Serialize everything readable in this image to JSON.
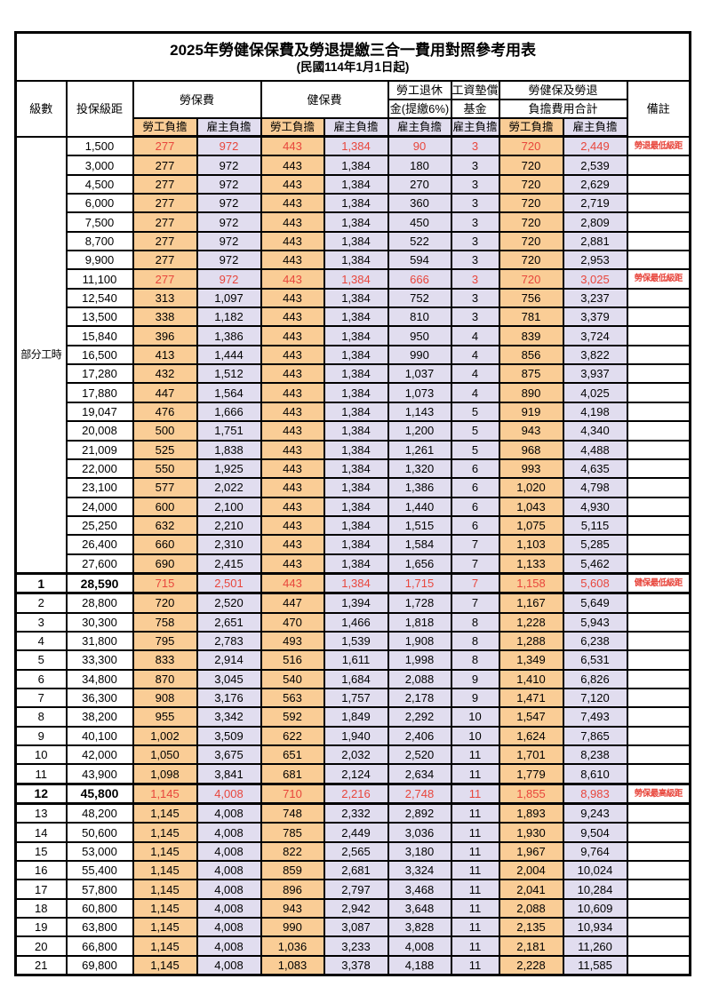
{
  "title": "2025年勞健保保費及勞退提繳三合一費用對照參考用表",
  "subtitle": "(民國114年1月1日起)",
  "header": {
    "level": "級數",
    "salary_bracket": "投保級距",
    "labor_insurance": "勞保費",
    "health_insurance": "健保費",
    "pension_line1": "勞工退休",
    "pension_line2": "金(提繳6%)",
    "wage_fund_line1": "工資墊償",
    "wage_fund_line2": "基金",
    "total_line1": "勞健保及勞退",
    "total_line2": "負擔費用合計",
    "remark": "備註",
    "employee_share": "勞工負擔",
    "employer_share": "雇主負擔"
  },
  "part_time_label": "部分工時",
  "colors": {
    "employee_bg": "#FACD96",
    "employer_bg": "#E1DDEF",
    "highlight_red": "#E8463C"
  },
  "rows": [
    {
      "level": "",
      "salary": "1,500",
      "labor_emp": "277",
      "labor_er": "972",
      "health_emp": "443",
      "health_er": "1,384",
      "pension_er": "90",
      "fund_er": "3",
      "total_emp": "720",
      "total_er": "2,449",
      "remark": "勞退最低級距",
      "red": true,
      "bold": false
    },
    {
      "level": "",
      "salary": "3,000",
      "labor_emp": "277",
      "labor_er": "972",
      "health_emp": "443",
      "health_er": "1,384",
      "pension_er": "180",
      "fund_er": "3",
      "total_emp": "720",
      "total_er": "2,539",
      "remark": "",
      "red": false,
      "bold": false
    },
    {
      "level": "",
      "salary": "4,500",
      "labor_emp": "277",
      "labor_er": "972",
      "health_emp": "443",
      "health_er": "1,384",
      "pension_er": "270",
      "fund_er": "3",
      "total_emp": "720",
      "total_er": "2,629",
      "remark": "",
      "red": false,
      "bold": false
    },
    {
      "level": "",
      "salary": "6,000",
      "labor_emp": "277",
      "labor_er": "972",
      "health_emp": "443",
      "health_er": "1,384",
      "pension_er": "360",
      "fund_er": "3",
      "total_emp": "720",
      "total_er": "2,719",
      "remark": "",
      "red": false,
      "bold": false
    },
    {
      "level": "",
      "salary": "7,500",
      "labor_emp": "277",
      "labor_er": "972",
      "health_emp": "443",
      "health_er": "1,384",
      "pension_er": "450",
      "fund_er": "3",
      "total_emp": "720",
      "total_er": "2,809",
      "remark": "",
      "red": false,
      "bold": false
    },
    {
      "level": "",
      "salary": "8,700",
      "labor_emp": "277",
      "labor_er": "972",
      "health_emp": "443",
      "health_er": "1,384",
      "pension_er": "522",
      "fund_er": "3",
      "total_emp": "720",
      "total_er": "2,881",
      "remark": "",
      "red": false,
      "bold": false
    },
    {
      "level": "",
      "salary": "9,900",
      "labor_emp": "277",
      "labor_er": "972",
      "health_emp": "443",
      "health_er": "1,384",
      "pension_er": "594",
      "fund_er": "3",
      "total_emp": "720",
      "total_er": "2,953",
      "remark": "",
      "red": false,
      "bold": false
    },
    {
      "level": "",
      "salary": "11,100",
      "labor_emp": "277",
      "labor_er": "972",
      "health_emp": "443",
      "health_er": "1,384",
      "pension_er": "666",
      "fund_er": "3",
      "total_emp": "720",
      "total_er": "3,025",
      "remark": "勞保最低級距",
      "red": true,
      "bold": false
    },
    {
      "level": "",
      "salary": "12,540",
      "labor_emp": "313",
      "labor_er": "1,097",
      "health_emp": "443",
      "health_er": "1,384",
      "pension_er": "752",
      "fund_er": "3",
      "total_emp": "756",
      "total_er": "3,237",
      "remark": "",
      "red": false,
      "bold": false
    },
    {
      "level": "",
      "salary": "13,500",
      "labor_emp": "338",
      "labor_er": "1,182",
      "health_emp": "443",
      "health_er": "1,384",
      "pension_er": "810",
      "fund_er": "3",
      "total_emp": "781",
      "total_er": "3,379",
      "remark": "",
      "red": false,
      "bold": false
    },
    {
      "level": "",
      "salary": "15,840",
      "labor_emp": "396",
      "labor_er": "1,386",
      "health_emp": "443",
      "health_er": "1,384",
      "pension_er": "950",
      "fund_er": "4",
      "total_emp": "839",
      "total_er": "3,724",
      "remark": "",
      "red": false,
      "bold": false
    },
    {
      "level": "",
      "salary": "16,500",
      "labor_emp": "413",
      "labor_er": "1,444",
      "health_emp": "443",
      "health_er": "1,384",
      "pension_er": "990",
      "fund_er": "4",
      "total_emp": "856",
      "total_er": "3,822",
      "remark": "",
      "red": false,
      "bold": false
    },
    {
      "level": "",
      "salary": "17,280",
      "labor_emp": "432",
      "labor_er": "1,512",
      "health_emp": "443",
      "health_er": "1,384",
      "pension_er": "1,037",
      "fund_er": "4",
      "total_emp": "875",
      "total_er": "3,937",
      "remark": "",
      "red": false,
      "bold": false
    },
    {
      "level": "",
      "salary": "17,880",
      "labor_emp": "447",
      "labor_er": "1,564",
      "health_emp": "443",
      "health_er": "1,384",
      "pension_er": "1,073",
      "fund_er": "4",
      "total_emp": "890",
      "total_er": "4,025",
      "remark": "",
      "red": false,
      "bold": false
    },
    {
      "level": "",
      "salary": "19,047",
      "labor_emp": "476",
      "labor_er": "1,666",
      "health_emp": "443",
      "health_er": "1,384",
      "pension_er": "1,143",
      "fund_er": "5",
      "total_emp": "919",
      "total_er": "4,198",
      "remark": "",
      "red": false,
      "bold": false
    },
    {
      "level": "",
      "salary": "20,008",
      "labor_emp": "500",
      "labor_er": "1,751",
      "health_emp": "443",
      "health_er": "1,384",
      "pension_er": "1,200",
      "fund_er": "5",
      "total_emp": "943",
      "total_er": "4,340",
      "remark": "",
      "red": false,
      "bold": false
    },
    {
      "level": "",
      "salary": "21,009",
      "labor_emp": "525",
      "labor_er": "1,838",
      "health_emp": "443",
      "health_er": "1,384",
      "pension_er": "1,261",
      "fund_er": "5",
      "total_emp": "968",
      "total_er": "4,488",
      "remark": "",
      "red": false,
      "bold": false
    },
    {
      "level": "",
      "salary": "22,000",
      "labor_emp": "550",
      "labor_er": "1,925",
      "health_emp": "443",
      "health_er": "1,384",
      "pension_er": "1,320",
      "fund_er": "6",
      "total_emp": "993",
      "total_er": "4,635",
      "remark": "",
      "red": false,
      "bold": false
    },
    {
      "level": "",
      "salary": "23,100",
      "labor_emp": "577",
      "labor_er": "2,022",
      "health_emp": "443",
      "health_er": "1,384",
      "pension_er": "1,386",
      "fund_er": "6",
      "total_emp": "1,020",
      "total_er": "4,798",
      "remark": "",
      "red": false,
      "bold": false
    },
    {
      "level": "",
      "salary": "24,000",
      "labor_emp": "600",
      "labor_er": "2,100",
      "health_emp": "443",
      "health_er": "1,384",
      "pension_er": "1,440",
      "fund_er": "6",
      "total_emp": "1,043",
      "total_er": "4,930",
      "remark": "",
      "red": false,
      "bold": false
    },
    {
      "level": "",
      "salary": "25,250",
      "labor_emp": "632",
      "labor_er": "2,210",
      "health_emp": "443",
      "health_er": "1,384",
      "pension_er": "1,515",
      "fund_er": "6",
      "total_emp": "1,075",
      "total_er": "5,115",
      "remark": "",
      "red": false,
      "bold": false
    },
    {
      "level": "",
      "salary": "26,400",
      "labor_emp": "660",
      "labor_er": "2,310",
      "health_emp": "443",
      "health_er": "1,384",
      "pension_er": "1,584",
      "fund_er": "7",
      "total_emp": "1,103",
      "total_er": "5,285",
      "remark": "",
      "red": false,
      "bold": false
    },
    {
      "level": "",
      "salary": "27,600",
      "labor_emp": "690",
      "labor_er": "2,415",
      "health_emp": "443",
      "health_er": "1,384",
      "pension_er": "1,656",
      "fund_er": "7",
      "total_emp": "1,133",
      "total_er": "5,462",
      "remark": "",
      "red": false,
      "bold": false
    },
    {
      "level": "1",
      "salary": "28,590",
      "labor_emp": "715",
      "labor_er": "2,501",
      "health_emp": "443",
      "health_er": "1,384",
      "pension_er": "1,715",
      "fund_er": "7",
      "total_emp": "1,158",
      "total_er": "5,608",
      "remark": "健保最低級距",
      "red": true,
      "bold": true
    },
    {
      "level": "2",
      "salary": "28,800",
      "labor_emp": "720",
      "labor_er": "2,520",
      "health_emp": "447",
      "health_er": "1,394",
      "pension_er": "1,728",
      "fund_er": "7",
      "total_emp": "1,167",
      "total_er": "5,649",
      "remark": "",
      "red": false,
      "bold": false
    },
    {
      "level": "3",
      "salary": "30,300",
      "labor_emp": "758",
      "labor_er": "2,651",
      "health_emp": "470",
      "health_er": "1,466",
      "pension_er": "1,818",
      "fund_er": "8",
      "total_emp": "1,228",
      "total_er": "5,943",
      "remark": "",
      "red": false,
      "bold": false
    },
    {
      "level": "4",
      "salary": "31,800",
      "labor_emp": "795",
      "labor_er": "2,783",
      "health_emp": "493",
      "health_er": "1,539",
      "pension_er": "1,908",
      "fund_er": "8",
      "total_emp": "1,288",
      "total_er": "6,238",
      "remark": "",
      "red": false,
      "bold": false
    },
    {
      "level": "5",
      "salary": "33,300",
      "labor_emp": "833",
      "labor_er": "2,914",
      "health_emp": "516",
      "health_er": "1,611",
      "pension_er": "1,998",
      "fund_er": "8",
      "total_emp": "1,349",
      "total_er": "6,531",
      "remark": "",
      "red": false,
      "bold": false
    },
    {
      "level": "6",
      "salary": "34,800",
      "labor_emp": "870",
      "labor_er": "3,045",
      "health_emp": "540",
      "health_er": "1,684",
      "pension_er": "2,088",
      "fund_er": "9",
      "total_emp": "1,410",
      "total_er": "6,826",
      "remark": "",
      "red": false,
      "bold": false
    },
    {
      "level": "7",
      "salary": "36,300",
      "labor_emp": "908",
      "labor_er": "3,176",
      "health_emp": "563",
      "health_er": "1,757",
      "pension_er": "2,178",
      "fund_er": "9",
      "total_emp": "1,471",
      "total_er": "7,120",
      "remark": "",
      "red": false,
      "bold": false
    },
    {
      "level": "8",
      "salary": "38,200",
      "labor_emp": "955",
      "labor_er": "3,342",
      "health_emp": "592",
      "health_er": "1,849",
      "pension_er": "2,292",
      "fund_er": "10",
      "total_emp": "1,547",
      "total_er": "7,493",
      "remark": "",
      "red": false,
      "bold": false
    },
    {
      "level": "9",
      "salary": "40,100",
      "labor_emp": "1,002",
      "labor_er": "3,509",
      "health_emp": "622",
      "health_er": "1,940",
      "pension_er": "2,406",
      "fund_er": "10",
      "total_emp": "1,624",
      "total_er": "7,865",
      "remark": "",
      "red": false,
      "bold": false
    },
    {
      "level": "10",
      "salary": "42,000",
      "labor_emp": "1,050",
      "labor_er": "3,675",
      "health_emp": "651",
      "health_er": "2,032",
      "pension_er": "2,520",
      "fund_er": "11",
      "total_emp": "1,701",
      "total_er": "8,238",
      "remark": "",
      "red": false,
      "bold": false
    },
    {
      "level": "11",
      "salary": "43,900",
      "labor_emp": "1,098",
      "labor_er": "3,841",
      "health_emp": "681",
      "health_er": "2,124",
      "pension_er": "2,634",
      "fund_er": "11",
      "total_emp": "1,779",
      "total_er": "8,610",
      "remark": "",
      "red": false,
      "bold": false
    },
    {
      "level": "12",
      "salary": "45,800",
      "labor_emp": "1,145",
      "labor_er": "4,008",
      "health_emp": "710",
      "health_er": "2,216",
      "pension_er": "2,748",
      "fund_er": "11",
      "total_emp": "1,855",
      "total_er": "8,983",
      "remark": "勞保最高級距",
      "red": true,
      "bold": true
    },
    {
      "level": "13",
      "salary": "48,200",
      "labor_emp": "1,145",
      "labor_er": "4,008",
      "health_emp": "748",
      "health_er": "2,332",
      "pension_er": "2,892",
      "fund_er": "11",
      "total_emp": "1,893",
      "total_er": "9,243",
      "remark": "",
      "red": false,
      "bold": false
    },
    {
      "level": "14",
      "salary": "50,600",
      "labor_emp": "1,145",
      "labor_er": "4,008",
      "health_emp": "785",
      "health_er": "2,449",
      "pension_er": "3,036",
      "fund_er": "11",
      "total_emp": "1,930",
      "total_er": "9,504",
      "remark": "",
      "red": false,
      "bold": false
    },
    {
      "level": "15",
      "salary": "53,000",
      "labor_emp": "1,145",
      "labor_er": "4,008",
      "health_emp": "822",
      "health_er": "2,565",
      "pension_er": "3,180",
      "fund_er": "11",
      "total_emp": "1,967",
      "total_er": "9,764",
      "remark": "",
      "red": false,
      "bold": false
    },
    {
      "level": "16",
      "salary": "55,400",
      "labor_emp": "1,145",
      "labor_er": "4,008",
      "health_emp": "859",
      "health_er": "2,681",
      "pension_er": "3,324",
      "fund_er": "11",
      "total_emp": "2,004",
      "total_er": "10,024",
      "remark": "",
      "red": false,
      "bold": false
    },
    {
      "level": "17",
      "salary": "57,800",
      "labor_emp": "1,145",
      "labor_er": "4,008",
      "health_emp": "896",
      "health_er": "2,797",
      "pension_er": "3,468",
      "fund_er": "11",
      "total_emp": "2,041",
      "total_er": "10,284",
      "remark": "",
      "red": false,
      "bold": false
    },
    {
      "level": "18",
      "salary": "60,800",
      "labor_emp": "1,145",
      "labor_er": "4,008",
      "health_emp": "943",
      "health_er": "2,942",
      "pension_er": "3,648",
      "fund_er": "11",
      "total_emp": "2,088",
      "total_er": "10,609",
      "remark": "",
      "red": false,
      "bold": false
    },
    {
      "level": "19",
      "salary": "63,800",
      "labor_emp": "1,145",
      "labor_er": "4,008",
      "health_emp": "990",
      "health_er": "3,087",
      "pension_er": "3,828",
      "fund_er": "11",
      "total_emp": "2,135",
      "total_er": "10,934",
      "remark": "",
      "red": false,
      "bold": false
    },
    {
      "level": "20",
      "salary": "66,800",
      "labor_emp": "1,145",
      "labor_er": "4,008",
      "health_emp": "1,036",
      "health_er": "3,233",
      "pension_er": "4,008",
      "fund_er": "11",
      "total_emp": "2,181",
      "total_er": "11,260",
      "remark": "",
      "red": false,
      "bold": false
    },
    {
      "level": "21",
      "salary": "69,800",
      "labor_emp": "1,145",
      "labor_er": "4,008",
      "health_emp": "1,083",
      "health_er": "3,378",
      "pension_er": "4,188",
      "fund_er": "11",
      "total_emp": "2,228",
      "total_er": "11,585",
      "remark": "",
      "red": false,
      "bold": false
    }
  ]
}
